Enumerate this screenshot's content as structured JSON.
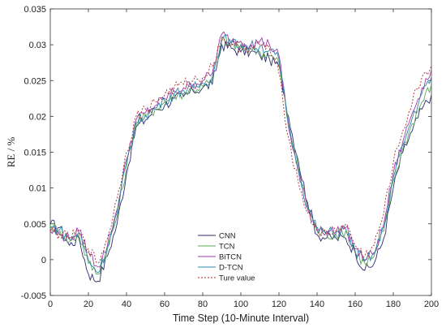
{
  "chart_data": {
    "type": "line",
    "title": "",
    "xlabel": "Time Step (10-Minute Interval)",
    "ylabel": "RE / %",
    "xlim": [
      0,
      200
    ],
    "ylim": [
      -0.005,
      0.035
    ],
    "xticks": [
      0,
      20,
      40,
      60,
      80,
      100,
      120,
      140,
      160,
      180,
      200
    ],
    "yticks": [
      -0.005,
      0,
      0.005,
      0.01,
      0.015,
      0.02,
      0.025,
      0.03,
      0.035
    ],
    "xtick_labels": [
      "0",
      "20",
      "40",
      "60",
      "80",
      "100",
      "120",
      "140",
      "160",
      "180",
      "200"
    ],
    "ytick_labels": [
      "-0.005",
      "0",
      "0.005",
      "0.01",
      "0.015",
      "0.02",
      "0.025",
      "0.03",
      "0.035"
    ],
    "grid": false,
    "legend_position": "bottom-center",
    "x": [
      0,
      5,
      10,
      15,
      20,
      25,
      30,
      35,
      40,
      45,
      50,
      55,
      60,
      65,
      70,
      75,
      80,
      85,
      90,
      95,
      100,
      105,
      110,
      115,
      120,
      125,
      130,
      135,
      140,
      145,
      150,
      155,
      160,
      165,
      170,
      175,
      180,
      185,
      190,
      195,
      200
    ],
    "series": [
      {
        "name": "CNN",
        "color": "#2b2d6e",
        "dash": "none",
        "values": [
          0.005,
          0.0045,
          0.002,
          0.003,
          -0.002,
          -0.003,
          0.0005,
          0.005,
          0.012,
          0.0185,
          0.0195,
          0.021,
          0.0215,
          0.0225,
          0.0228,
          0.0235,
          0.024,
          0.0245,
          0.03,
          0.0295,
          0.029,
          0.029,
          0.0285,
          0.028,
          0.027,
          0.02,
          0.014,
          0.008,
          0.0035,
          0.003,
          0.003,
          0.003,
          0.001,
          -0.0015,
          -0.0005,
          0.003,
          0.01,
          0.015,
          0.018,
          0.021,
          0.023
        ]
      },
      {
        "name": "TCN",
        "color": "#5fa85a",
        "dash": "none",
        "values": [
          0.0048,
          0.004,
          0.0025,
          0.0035,
          -0.0005,
          -0.002,
          0.0015,
          0.006,
          0.013,
          0.019,
          0.02,
          0.021,
          0.022,
          0.023,
          0.0232,
          0.0238,
          0.0242,
          0.025,
          0.0305,
          0.03,
          0.0295,
          0.0295,
          0.029,
          0.0285,
          0.0275,
          0.019,
          0.013,
          0.0075,
          0.004,
          0.0035,
          0.0035,
          0.004,
          0.001,
          -0.0005,
          0.0005,
          0.004,
          0.011,
          0.0155,
          0.019,
          0.022,
          0.0245
        ]
      },
      {
        "name": "BiTCN",
        "color": "#a03ab0",
        "dash": "none",
        "values": [
          0.004,
          0.0035,
          0.003,
          0.004,
          0.001,
          -0.001,
          0.002,
          0.007,
          0.014,
          0.0195,
          0.0205,
          0.0215,
          0.0225,
          0.0235,
          0.024,
          0.0245,
          0.025,
          0.026,
          0.0315,
          0.0305,
          0.0305,
          0.03,
          0.0305,
          0.03,
          0.0285,
          0.0185,
          0.0125,
          0.007,
          0.0045,
          0.004,
          0.004,
          0.0045,
          0.0015,
          0.0,
          0.001,
          0.005,
          0.012,
          0.0165,
          0.0205,
          0.024,
          0.0265
        ]
      },
      {
        "name": "D-TCN",
        "color": "#2e88a8",
        "dash": "none",
        "values": [
          0.0045,
          0.0042,
          0.0028,
          0.0038,
          0.0,
          -0.0018,
          0.0018,
          0.0065,
          0.0135,
          0.0192,
          0.0202,
          0.0212,
          0.0222,
          0.0232,
          0.0236,
          0.024,
          0.0246,
          0.0255,
          0.031,
          0.0302,
          0.03,
          0.0298,
          0.0298,
          0.0292,
          0.028,
          0.0188,
          0.0128,
          0.0072,
          0.0042,
          0.0038,
          0.0038,
          0.0043,
          0.0012,
          -0.0002,
          0.0008,
          0.0045,
          0.0115,
          0.016,
          0.0198,
          0.0232,
          0.0255
        ]
      },
      {
        "name": "Ture value",
        "color": "#b02a2a",
        "dash": "2,2",
        "values": [
          0.004,
          0.0035,
          0.003,
          0.0038,
          0.0015,
          -0.0005,
          0.003,
          0.0085,
          0.015,
          0.02,
          0.021,
          0.022,
          0.023,
          0.024,
          0.0245,
          0.025,
          0.0255,
          0.027,
          0.031,
          0.0298,
          0.0298,
          0.0295,
          0.03,
          0.0295,
          0.026,
          0.017,
          0.011,
          0.0065,
          0.004,
          0.0035,
          0.004,
          0.005,
          0.002,
          0.0005,
          0.002,
          0.0065,
          0.0135,
          0.018,
          0.022,
          0.0255,
          0.027
        ]
      }
    ]
  }
}
